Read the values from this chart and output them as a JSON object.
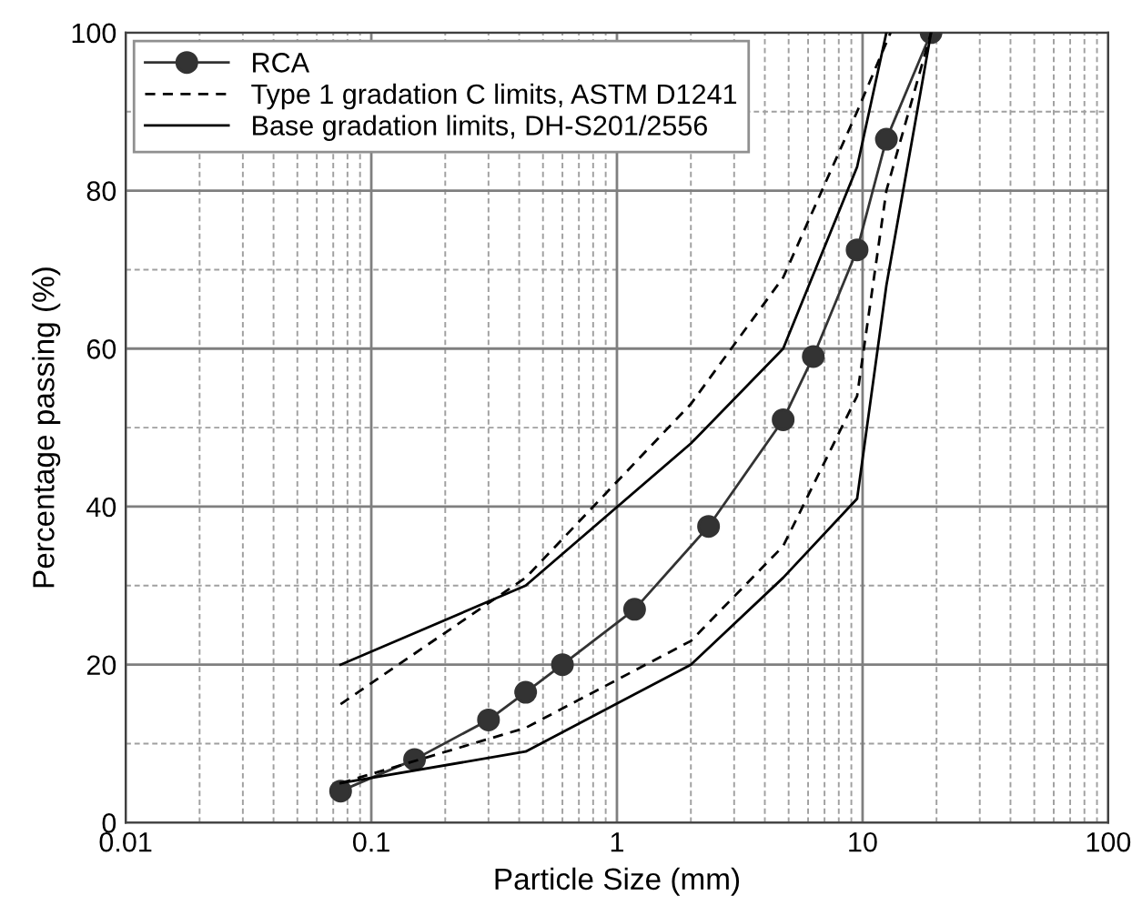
{
  "chart_data": {
    "type": "line",
    "xlabel": "Particle Size (mm)",
    "ylabel": "Percentage passing (%)",
    "log": "x",
    "xlim": [
      0.01,
      100
    ],
    "xticks": [
      0.01,
      0.1,
      1,
      10,
      100
    ],
    "ylim": [
      0,
      100
    ],
    "yticks": [
      0,
      20,
      40,
      60,
      80,
      100
    ],
    "grid": true,
    "legend": "top left",
    "series": [
      {
        "name": "RCA",
        "color": "#333333",
        "marker": "circle",
        "line_style": "solid",
        "x": [
          0.075,
          0.15,
          0.3,
          0.425,
          0.6,
          1.18,
          2.36,
          4.75,
          6.3,
          9.5,
          12.5,
          19
        ],
        "values": [
          4,
          8,
          13,
          16.5,
          20,
          27,
          37.5,
          51,
          59,
          72.5,
          86.5,
          100
        ]
      },
      {
        "name": "Type 1 gradation C limits, ASTM D1241",
        "color": "#000000",
        "marker": "none",
        "line_style": "dashed",
        "x": [
          0.075,
          0.425,
          2.0,
          4.75,
          9.5,
          13
        ],
        "values": [
          15,
          31,
          53,
          69,
          90,
          100
        ]
      },
      {
        "color": "#000000",
        "marker": "none",
        "line_style": "dashed",
        "x": [
          0.075,
          0.425,
          2.0,
          4.75,
          9.5,
          12.5,
          19
        ],
        "values": [
          5,
          12,
          23,
          35,
          54,
          80,
          100
        ]
      },
      {
        "name": "Base gradation limits, DH-S201/2556",
        "color": "#000000",
        "marker": "none",
        "line_style": "solid",
        "x": [
          0.075,
          0.425,
          2.0,
          4.75,
          9.5,
          12.5
        ],
        "values": [
          20,
          30,
          48,
          60,
          83,
          100
        ]
      },
      {
        "color": "#000000",
        "marker": "none",
        "line_style": "solid",
        "x": [
          0.075,
          0.425,
          2.0,
          4.75,
          9.5,
          12.5,
          19
        ],
        "values": [
          5,
          9,
          20,
          31,
          41,
          68,
          100
        ]
      }
    ]
  }
}
